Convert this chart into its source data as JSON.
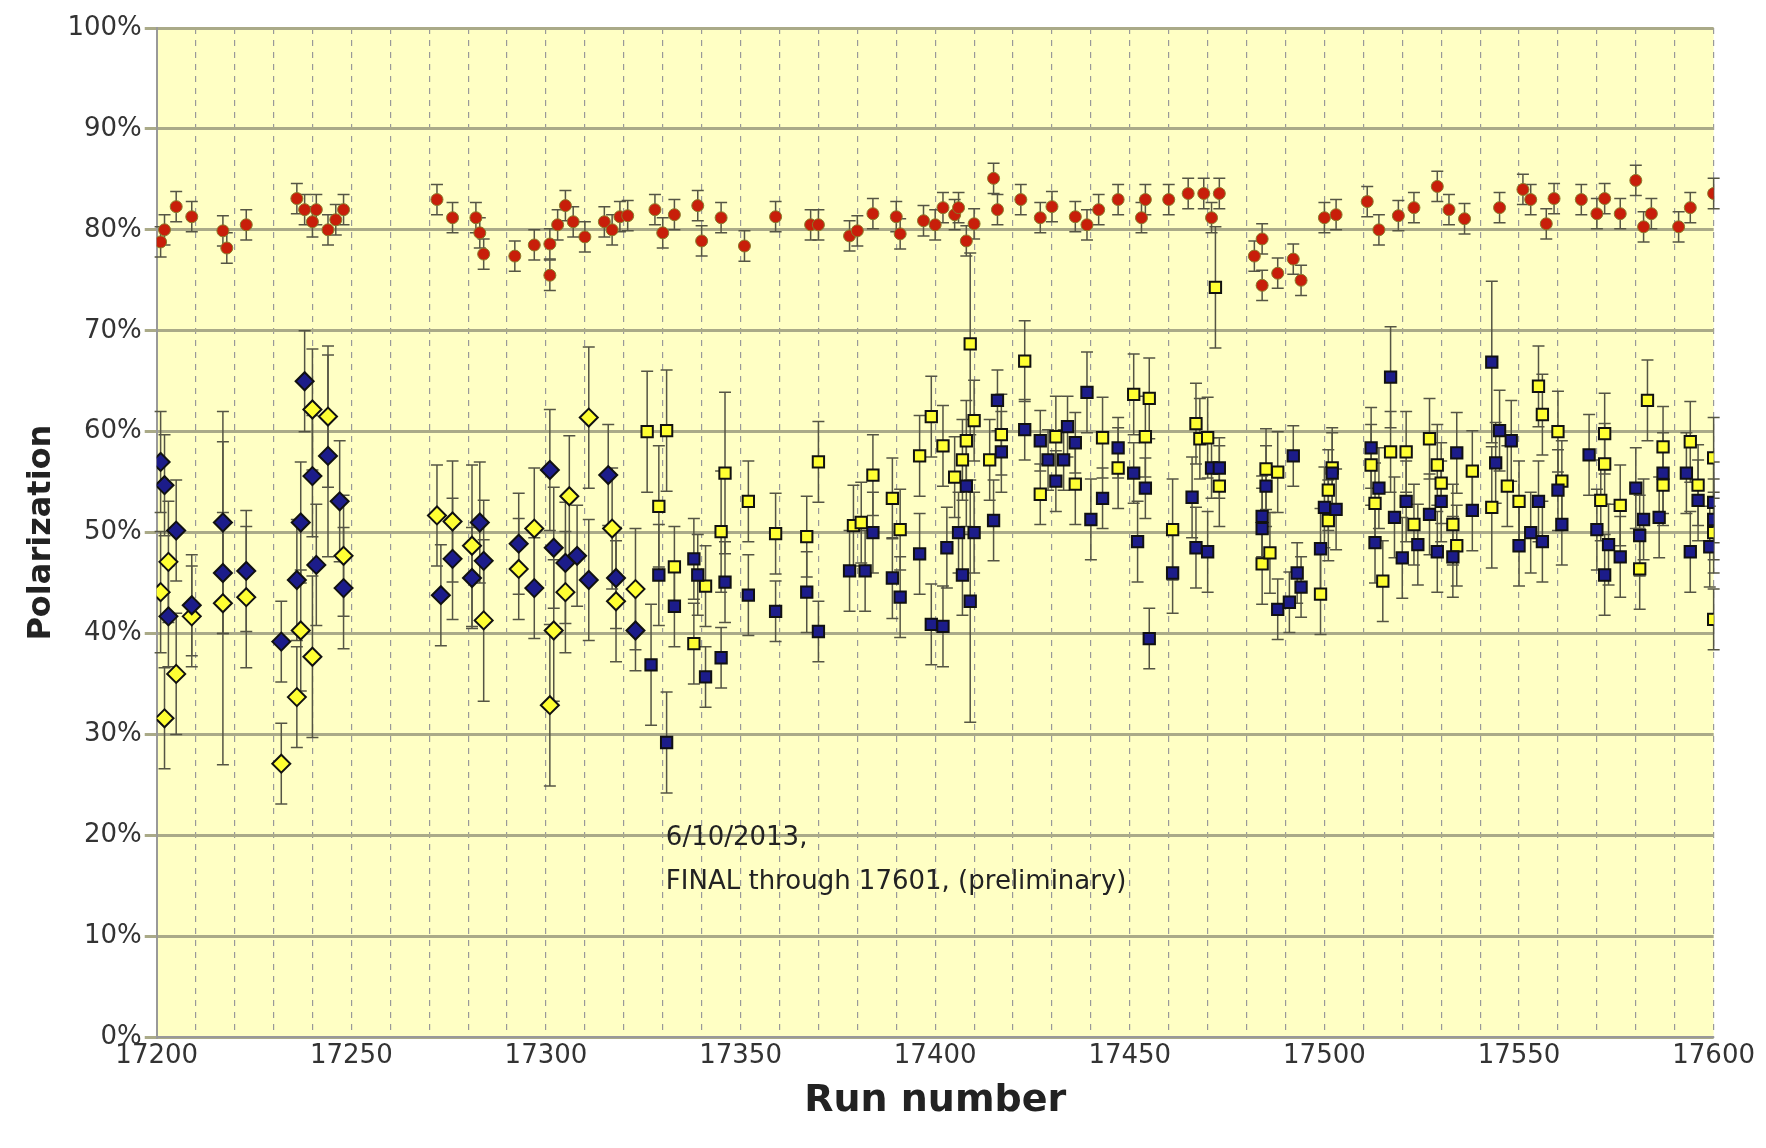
{
  "chart_data": {
    "type": "scatter",
    "xlabel": "Run number",
    "ylabel": "Polarization",
    "annotations": [
      "6/10/2013,",
      "FINAL through 17601, (preliminary)"
    ],
    "xlim": [
      17200,
      17600
    ],
    "xticks": [
      17200,
      {
        "value": 17210,
        "label": null
      },
      {
        "value": 17220,
        "label": null
      },
      {
        "value": 17230,
        "label": null
      },
      {
        "value": 17240,
        "label": null
      },
      17250,
      {
        "value": 17260,
        "label": null
      },
      {
        "value": 17270,
        "label": null
      },
      {
        "value": 17280,
        "label": null
      },
      {
        "value": 17290,
        "label": null
      },
      17300,
      {
        "value": 17310,
        "label": null
      },
      {
        "value": 17320,
        "label": null
      },
      {
        "value": 17330,
        "label": null
      },
      {
        "value": 17340,
        "label": null
      },
      17350,
      {
        "value": 17360,
        "label": null
      },
      {
        "value": 17370,
        "label": null
      },
      {
        "value": 17380,
        "label": null
      },
      {
        "value": 17390,
        "label": null
      },
      17400,
      {
        "value": 17410,
        "label": null
      },
      {
        "value": 17420,
        "label": null
      },
      {
        "value": 17430,
        "label": null
      },
      {
        "value": 17440,
        "label": null
      },
      17450,
      {
        "value": 17460,
        "label": null
      },
      {
        "value": 17470,
        "label": null
      },
      {
        "value": 17480,
        "label": null
      },
      {
        "value": 17490,
        "label": null
      },
      17500,
      {
        "value": 17510,
        "label": null
      },
      {
        "value": 17520,
        "label": null
      },
      {
        "value": 17530,
        "label": null
      },
      {
        "value": 17540,
        "label": null
      },
      17550,
      {
        "value": 17560,
        "label": null
      },
      {
        "value": 17570,
        "label": null
      },
      {
        "value": 17580,
        "label": null
      },
      {
        "value": 17590,
        "label": null
      },
      17600
    ],
    "ylim": [
      0,
      100
    ],
    "yticks": [
      {
        "value": 0,
        "label": "0%"
      },
      {
        "value": 10,
        "label": "10%"
      },
      {
        "value": 20,
        "label": "20%"
      },
      {
        "value": 30,
        "label": "30%"
      },
      {
        "value": 40,
        "label": "40%"
      },
      {
        "value": 50,
        "label": "50%"
      },
      {
        "value": 60,
        "label": "60%"
      },
      {
        "value": 70,
        "label": "70%"
      },
      {
        "value": 80,
        "label": "80%"
      },
      {
        "value": 90,
        "label": "90%"
      },
      {
        "value": 100,
        "label": "100%"
      }
    ],
    "grid": true,
    "legend": false,
    "series": [
      {
        "color": "#c81e0a",
        "marker": "circle",
        "x": [
          17201,
          17202,
          17205,
          17209,
          17217,
          17218,
          17223,
          17236,
          17238,
          17240,
          17241,
          17244,
          17246,
          17248,
          17272,
          17276,
          17282,
          17283,
          17284,
          17292,
          17297,
          17301,
          17301,
          17303,
          17305,
          17307,
          17310,
          17315,
          17317,
          17319,
          17321,
          17328,
          17330,
          17333,
          17339,
          17340,
          17345,
          17351,
          17359,
          17368,
          17370,
          17378,
          17380,
          17384,
          17390,
          17391,
          17397,
          17400,
          17402,
          17405,
          17406,
          17408,
          17410,
          17415,
          17416,
          17422,
          17427,
          17430,
          17436,
          17439,
          17442,
          17447,
          17453,
          17454,
          17460,
          17465,
          17469,
          17471,
          17473,
          17482,
          17484,
          17484,
          17488,
          17492,
          17494,
          17500,
          17503,
          17511,
          17514,
          17519,
          17523,
          17529,
          17532,
          17536,
          17545,
          17551,
          17553,
          17557,
          17559,
          17566,
          17570,
          17572,
          17576,
          17580,
          17582,
          17584,
          17591,
          17594,
          17600
        ],
        "values": [
          78.8,
          80,
          82.3,
          81.3,
          79.9,
          78.2,
          80.5,
          83.1,
          82,
          80.8,
          82,
          80,
          81,
          82,
          83,
          81.2,
          81.2,
          79.7,
          77.6,
          77.4,
          78.5,
          78.6,
          75.5,
          80.5,
          82.4,
          80.8,
          79.3,
          80.8,
          80,
          81.3,
          81.4,
          82,
          79.7,
          81.5,
          82.4,
          78.9,
          81.2,
          78.4,
          81.3,
          80.5,
          80.5,
          79.4,
          79.9,
          81.6,
          81.3,
          79.6,
          80.9,
          80.5,
          82.2,
          81.5,
          82.2,
          78.9,
          80.6,
          85.1,
          82,
          83,
          81.2,
          82.3,
          81.3,
          80.5,
          82,
          83,
          81.2,
          83,
          83,
          83.6,
          83.6,
          81.2,
          83.6,
          77.4,
          79.1,
          74.5,
          75.7,
          77.1,
          75,
          81.2,
          81.5,
          82.8,
          80,
          81.4,
          82.2,
          84.3,
          82,
          81.1,
          82.2,
          84,
          83,
          80.6,
          83.1,
          83,
          81.6,
          83.1,
          81.6,
          84.9,
          80.3,
          81.6,
          80.3,
          82.2,
          83.6
        ],
        "errors": [
          1.5,
          1.5,
          1.5,
          1.5,
          1.5,
          1.5,
          1.5,
          1.5,
          1.5,
          1.5,
          1.5,
          1.5,
          1.5,
          1.5,
          1.5,
          1.5,
          1.5,
          1.5,
          1.5,
          1.5,
          1.5,
          1.5,
          1.5,
          1.5,
          1.5,
          1.5,
          1.5,
          1.5,
          1.5,
          1.5,
          1.5,
          1.5,
          1.5,
          1.5,
          1.5,
          1.5,
          1.5,
          1.5,
          1.5,
          1.5,
          1.5,
          1.5,
          1.5,
          1.5,
          1.5,
          1.5,
          1.5,
          1.5,
          1.5,
          1.5,
          1.5,
          1.5,
          1.5,
          1.5,
          1.5,
          1.5,
          1.5,
          1.5,
          1.5,
          1.5,
          1.5,
          1.5,
          1.5,
          1.5,
          1.5,
          1.5,
          1.5,
          1.5,
          1.5,
          1.5,
          1.5,
          1.5,
          1.5,
          1.5,
          1.5,
          1.5,
          1.5,
          1.5,
          1.5,
          1.5,
          1.5,
          1.5,
          1.5,
          1.5,
          1.5,
          1.5,
          1.5,
          1.5,
          1.5,
          1.5,
          1.5,
          1.5,
          1.5,
          1.5,
          1.5,
          1.5,
          1.5,
          1.5,
          1.5
        ]
      },
      {
        "color": "#1c1c8a",
        "marker": "diamond",
        "x": [
          17201,
          17202,
          17203,
          17205,
          17209,
          17217,
          17217,
          17223,
          17232,
          17236,
          17237,
          17238,
          17240,
          17241,
          17244,
          17247,
          17248,
          17273,
          17276,
          17281,
          17283,
          17284,
          17293,
          17297,
          17301,
          17302,
          17305,
          17308,
          17311,
          17316,
          17318,
          17323
        ],
        "values": [
          57.0,
          54.7,
          41.7,
          50.2,
          42.8,
          51.0,
          46.0,
          46.2,
          39.2,
          45.3,
          51.0,
          65.0,
          55.6,
          46.8,
          57.6,
          53.1,
          44.5,
          43.8,
          47.4,
          45.5,
          51.0,
          47.2,
          48.9,
          44.5,
          56.2,
          48.5,
          47.0,
          47.7,
          45.3,
          55.7,
          45.5,
          40.3
        ],
        "errors": [
          5,
          5,
          5,
          5,
          5,
          11,
          6,
          6,
          4,
          6,
          6,
          5,
          6,
          6,
          10,
          6,
          6,
          5,
          6,
          5,
          6,
          6,
          5,
          5,
          6,
          6,
          6,
          5,
          6,
          5,
          5,
          4
        ]
      },
      {
        "color": "#ffff33",
        "marker": "diamond",
        "x": [
          17201,
          17202,
          17203,
          17205,
          17209,
          17217,
          17223,
          17232,
          17236,
          17237,
          17240,
          17240,
          17244,
          17248,
          17272,
          17276,
          17281,
          17284,
          17293,
          17297,
          17301,
          17302,
          17305,
          17306,
          17311,
          17317,
          17318,
          17323
        ],
        "values": [
          44.1,
          31.6,
          47.1,
          36.0,
          41.7,
          43.0,
          43.6,
          27.1,
          33.7,
          40.3,
          37.7,
          62.2,
          61.5,
          47.7,
          51.7,
          51.1,
          48.7,
          41.3,
          46.4,
          50.4,
          32.9,
          40.3,
          44.1,
          53.6,
          61.4,
          50.4,
          43.2,
          44.4
        ],
        "errors": [
          6,
          5,
          6,
          6,
          5,
          16,
          7,
          4,
          5,
          6,
          8,
          6,
          7,
          6,
          5,
          6,
          8,
          8,
          5,
          6,
          8,
          7,
          6,
          6,
          7,
          6,
          6,
          6
        ]
      },
      {
        "color": "#1c1c8a",
        "marker": "square",
        "x": [
          17329,
          17327,
          17331,
          17333,
          17338,
          17339,
          17341,
          17345,
          17346,
          17352,
          17359,
          17367,
          17370,
          17378,
          17382,
          17384,
          17389,
          17391,
          17396,
          17399,
          17402,
          17403,
          17406,
          17407,
          17408,
          17409,
          17410,
          17415,
          17416,
          17417,
          17423,
          17427,
          17429,
          17431,
          17433,
          17434,
          17436,
          17439,
          17440,
          17443,
          17447,
          17451,
          17452,
          17454,
          17455,
          17461,
          17466,
          17467,
          17470,
          17471,
          17473,
          17484,
          17484,
          17485,
          17488,
          17491,
          17492,
          17493,
          17494,
          17499,
          17500,
          17502,
          17503,
          17512,
          17513,
          17514,
          17517,
          17518,
          17520,
          17521,
          17524,
          17527,
          17529,
          17530,
          17533,
          17534,
          17538,
          17543,
          17544,
          17545,
          17548,
          17550,
          17553,
          17555,
          17556,
          17560,
          17561,
          17568,
          17570,
          17572,
          17573,
          17576,
          17580,
          17581,
          17582,
          17586,
          17587,
          17593,
          17594,
          17596,
          17599,
          17600,
          17600
        ],
        "values": [
          45.8,
          36.9,
          29.2,
          42.7,
          47.4,
          45.8,
          35.7,
          37.6,
          45.1,
          43.8,
          42.2,
          44.1,
          40.2,
          46.2,
          46.2,
          50.0,
          45.5,
          43.6,
          47.9,
          40.9,
          40.7,
          48.5,
          50.0,
          45.8,
          54.6,
          43.2,
          50.0,
          51.2,
          63.1,
          58.0,
          60.2,
          59.1,
          57.2,
          55.1,
          57.2,
          60.5,
          58.9,
          63.9,
          51.3,
          53.4,
          58.4,
          55.9,
          49.1,
          54.4,
          39.5,
          46.0,
          53.5,
          48.5,
          48.1,
          56.4,
          56.4,
          51.6,
          50.4,
          54.6,
          42.4,
          43.1,
          57.6,
          46.0,
          44.6,
          48.4,
          52.5,
          55.9,
          52.3,
          58.4,
          49.0,
          54.4,
          65.4,
          51.5,
          47.5,
          53.1,
          48.8,
          51.8,
          48.1,
          53.1,
          47.6,
          57.9,
          52.2,
          66.9,
          56.9,
          60.1,
          59.1,
          48.7,
          50.0,
          53.1,
          49.1,
          54.2,
          50.8,
          57.7,
          50.3,
          45.8,
          48.8,
          47.6,
          54.4,
          49.7,
          51.3,
          51.5,
          55.9,
          55.9,
          48.1,
          53.2,
          48.6,
          51.3,
          53.0
        ],
        "errors": [
          5,
          6,
          5,
          4,
          4,
          4,
          3,
          3,
          4,
          4,
          3,
          4,
          3,
          4,
          4,
          4,
          4,
          4,
          4,
          4,
          4,
          4,
          4,
          4,
          4,
          12,
          4,
          4,
          3,
          4,
          3,
          3,
          3,
          3,
          3,
          3,
          3,
          4,
          4,
          3,
          3,
          3,
          4,
          3,
          3,
          4,
          4,
          4,
          4,
          3,
          3,
          4,
          4,
          4,
          3,
          3,
          3,
          3,
          3,
          4,
          4,
          4,
          4,
          4,
          4,
          4,
          5,
          4,
          4,
          4,
          4,
          4,
          4,
          4,
          4,
          4,
          4,
          8,
          4,
          4,
          4,
          4,
          4,
          4,
          4,
          4,
          4,
          4,
          4,
          4,
          4,
          4,
          4,
          4,
          4,
          4,
          4,
          4,
          4,
          4,
          4,
          4,
          4
        ]
      },
      {
        "color": "#ffff33",
        "marker": "square",
        "x": [
          17326,
          17329,
          17331,
          17333,
          17338,
          17341,
          17345,
          17346,
          17352,
          17359,
          17367,
          17370,
          17379,
          17381,
          17384,
          17389,
          17391,
          17396,
          17399,
          17402,
          17405,
          17407,
          17408,
          17409,
          17410,
          17414,
          17417,
          17423,
          17427,
          17431,
          17436,
          17443,
          17447,
          17451,
          17454,
          17455,
          17461,
          17467,
          17468,
          17470,
          17472,
          17473,
          17484,
          17485,
          17486,
          17488,
          17499,
          17501,
          17501,
          17502,
          17512,
          17513,
          17515,
          17517,
          17521,
          17523,
          17527,
          17529,
          17530,
          17533,
          17534,
          17538,
          17543,
          17547,
          17550,
          17555,
          17556,
          17560,
          17561,
          17571,
          17572,
          17572,
          17576,
          17581,
          17583,
          17587,
          17587,
          17594,
          17596,
          17600,
          17600,
          17600
        ],
        "values": [
          60,
          52.6,
          60.1,
          46.6,
          39.0,
          44.7,
          50.1,
          55.9,
          53.1,
          49.9,
          49.6,
          57.0,
          50.7,
          51.0,
          55.7,
          53.4,
          50.3,
          57.6,
          61.5,
          58.6,
          55.5,
          57.2,
          59.1,
          68.7,
          61.1,
          57.2,
          59.7,
          67.0,
          53.8,
          59.5,
          54.8,
          59.4,
          56.4,
          63.7,
          59.5,
          63.3,
          50.3,
          60.8,
          59.3,
          59.4,
          74.3,
          54.6,
          46.9,
          56.3,
          48.0,
          56.0,
          43.9,
          54.2,
          51.2,
          56.4,
          56.7,
          52.9,
          45.2,
          58.0,
          58.0,
          50.8,
          59.3,
          56.7,
          54.9,
          50.8,
          48.7,
          56.1,
          52.5,
          54.6,
          53.1,
          64.5,
          61.7,
          60.0,
          55.1,
          53.2,
          59.8,
          56.8,
          52.7,
          46.4,
          63.1,
          58.5,
          54.7,
          59.0,
          54.7,
          57.4,
          41.4,
          50.0
        ],
        "errors": [
          6,
          6,
          6,
          4,
          4,
          4,
          6,
          8,
          4,
          4,
          4,
          4,
          4,
          4,
          4,
          4,
          4,
          4,
          4,
          4,
          4,
          4,
          4,
          9,
          4,
          4,
          4,
          4,
          3,
          4,
          4,
          4,
          4,
          4,
          4,
          4,
          5,
          4,
          4,
          4,
          6,
          4,
          4,
          4,
          4,
          4,
          4,
          4,
          4,
          4,
          4,
          4,
          4,
          4,
          4,
          4,
          4,
          4,
          4,
          4,
          4,
          4,
          6,
          4,
          4,
          4,
          4,
          4,
          4,
          4,
          4,
          4,
          4,
          4,
          4,
          4,
          4,
          4,
          4,
          4,
          3,
          4
        ]
      }
    ]
  }
}
